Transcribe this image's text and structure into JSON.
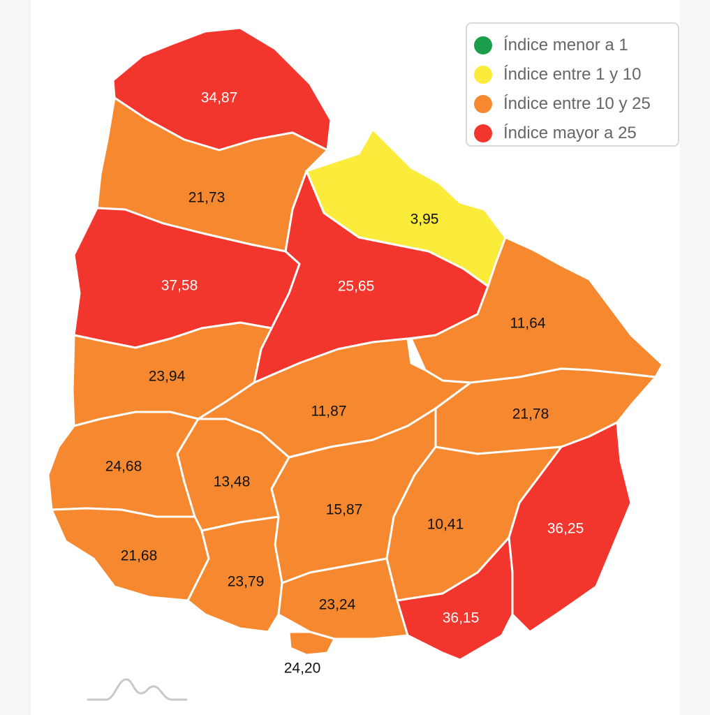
{
  "colors": {
    "green": "#1b9e4b",
    "yellow": "#fbeb3a",
    "orange": "#f6892f",
    "red": "#f2352d",
    "border": "#ffffff"
  },
  "legend": [
    {
      "label": "Índice menor a 1",
      "color": "#1b9e4b"
    },
    {
      "label": "Índice entre 1 y 10",
      "color": "#fbeb3a"
    },
    {
      "label": "Índice entre 10 y 25",
      "color": "#f6892f"
    },
    {
      "label": "Índice mayor a 25",
      "color": "#f2352d"
    }
  ],
  "departments": [
    {
      "value": "34,87",
      "category": "red"
    },
    {
      "value": "21,73",
      "category": "orange"
    },
    {
      "value": "3,95",
      "category": "yellow"
    },
    {
      "value": "37,58",
      "category": "red"
    },
    {
      "value": "25,65",
      "category": "red"
    },
    {
      "value": "11,64",
      "category": "orange"
    },
    {
      "value": "23,94",
      "category": "orange"
    },
    {
      "value": "11,87",
      "category": "orange"
    },
    {
      "value": "21,78",
      "category": "orange"
    },
    {
      "value": "24,68",
      "category": "orange"
    },
    {
      "value": "13,48",
      "category": "orange"
    },
    {
      "value": "15,87",
      "category": "orange"
    },
    {
      "value": "10,41",
      "category": "orange"
    },
    {
      "value": "36,25",
      "category": "red"
    },
    {
      "value": "21,68",
      "category": "orange"
    },
    {
      "value": "23,79",
      "category": "orange"
    },
    {
      "value": "23,24",
      "category": "orange"
    },
    {
      "value": "36,15",
      "category": "red"
    },
    {
      "value": "24,20",
      "category": "orange"
    }
  ],
  "logo_icon": "mountain-logo-icon"
}
